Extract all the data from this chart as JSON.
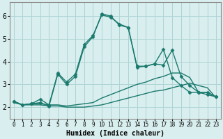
{
  "xlabel": "Humidex (Indice chaleur)",
  "background_color": "#d9eeee",
  "grid_color": "#aed4d4",
  "line_color": "#1a7a6e",
  "xlim": [
    -0.5,
    23.5
  ],
  "ylim": [
    1.5,
    6.6
  ],
  "xticks": [
    0,
    1,
    2,
    3,
    4,
    5,
    6,
    7,
    8,
    9,
    10,
    11,
    12,
    13,
    14,
    15,
    16,
    17,
    18,
    19,
    20,
    21,
    22,
    23
  ],
  "yticks": [
    2,
    3,
    4,
    5,
    6
  ],
  "series": [
    {
      "x": [
        0,
        1,
        2,
        3,
        4,
        5,
        6,
        7,
        8,
        9,
        10,
        11,
        12,
        13,
        14,
        15,
        16,
        17,
        18,
        19,
        20,
        21,
        22,
        23
      ],
      "y": [
        2.2,
        2.1,
        2.1,
        2.1,
        2.05,
        2.05,
        2.0,
        2.0,
        2.0,
        2.05,
        2.1,
        2.2,
        2.3,
        2.4,
        2.5,
        2.6,
        2.7,
        2.75,
        2.85,
        2.95,
        3.05,
        2.95,
        2.85,
        2.4
      ],
      "linestyle": "-",
      "marker": null,
      "lw": 1.0
    },
    {
      "x": [
        0,
        1,
        2,
        3,
        4,
        5,
        6,
        7,
        8,
        9,
        10,
        11,
        12,
        13,
        14,
        15,
        16,
        17,
        18,
        19,
        20,
        21,
        22,
        23
      ],
      "y": [
        2.25,
        2.1,
        2.15,
        2.15,
        2.1,
        2.1,
        2.05,
        2.1,
        2.15,
        2.2,
        2.4,
        2.55,
        2.7,
        2.85,
        3.0,
        3.1,
        3.25,
        3.35,
        3.5,
        3.5,
        3.3,
        2.65,
        2.65,
        2.45
      ],
      "linestyle": "-",
      "marker": null,
      "lw": 1.0
    },
    {
      "x": [
        0,
        1,
        2,
        3,
        4,
        5,
        6,
        7,
        8,
        9,
        10,
        11,
        12,
        13,
        14,
        15,
        16,
        17,
        18,
        19,
        20,
        21,
        22,
        23
      ],
      "y": [
        2.25,
        2.1,
        2.15,
        2.2,
        2.05,
        3.45,
        3.0,
        3.35,
        4.65,
        5.1,
        6.1,
        6.0,
        5.6,
        5.5,
        3.8,
        3.8,
        3.9,
        3.85,
        4.5,
        3.35,
        2.95,
        2.65,
        2.65,
        2.45
      ],
      "linestyle": "-",
      "marker": "D",
      "lw": 1.0
    },
    {
      "x": [
        0,
        1,
        2,
        3,
        4,
        5,
        6,
        7,
        8,
        9,
        10,
        11,
        12,
        13,
        14,
        15,
        16,
        17,
        18,
        19,
        20,
        21,
        22,
        23
      ],
      "y": [
        2.25,
        2.1,
        2.15,
        2.35,
        2.1,
        3.5,
        3.1,
        3.45,
        4.75,
        5.15,
        6.05,
        5.95,
        5.65,
        5.5,
        3.75,
        3.8,
        3.9,
        4.55,
        3.3,
        2.95,
        2.65,
        2.65,
        2.55,
        2.45
      ],
      "linestyle": "-",
      "marker": "D",
      "lw": 1.0
    }
  ]
}
